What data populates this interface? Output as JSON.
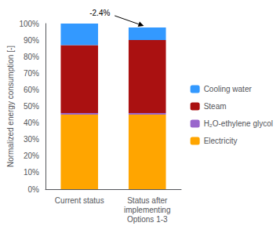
{
  "chart_data": {
    "type": "bar",
    "stacked": true,
    "categories": [
      "Current status",
      "Status after\nimplementing\nOptions 1-3"
    ],
    "series": [
      {
        "name": "Electricity",
        "color": "#FFA500",
        "values": [
          45.0,
          45.0
        ]
      },
      {
        "name": "H₂O-ethylene glycol",
        "color": "#9966CC",
        "values": [
          1.0,
          1.0
        ]
      },
      {
        "name": "Steam",
        "color": "#AA1111",
        "values": [
          41.0,
          44.0
        ]
      },
      {
        "name": "Cooling water",
        "color": "#3399FF",
        "values": [
          13.0,
          7.6
        ]
      }
    ],
    "ylabel": "Normalized energy consumption [-]",
    "ylim": [
      0,
      100
    ],
    "yticks": [
      {
        "value": 0,
        "label": "0%"
      },
      {
        "value": 10,
        "label": "10%"
      },
      {
        "value": 20,
        "label": "20%"
      },
      {
        "value": 30,
        "label": "30%"
      },
      {
        "value": 40,
        "label": "40%"
      },
      {
        "value": 50,
        "label": "50%"
      },
      {
        "value": 60,
        "label": "60%"
      },
      {
        "value": 70,
        "label": "70%"
      },
      {
        "value": 80,
        "label": "80%"
      },
      {
        "value": 90,
        "label": "90%"
      },
      {
        "value": 100,
        "label": "100%"
      }
    ],
    "annotation": "-2.4%",
    "legend": "right",
    "grid": false
  }
}
